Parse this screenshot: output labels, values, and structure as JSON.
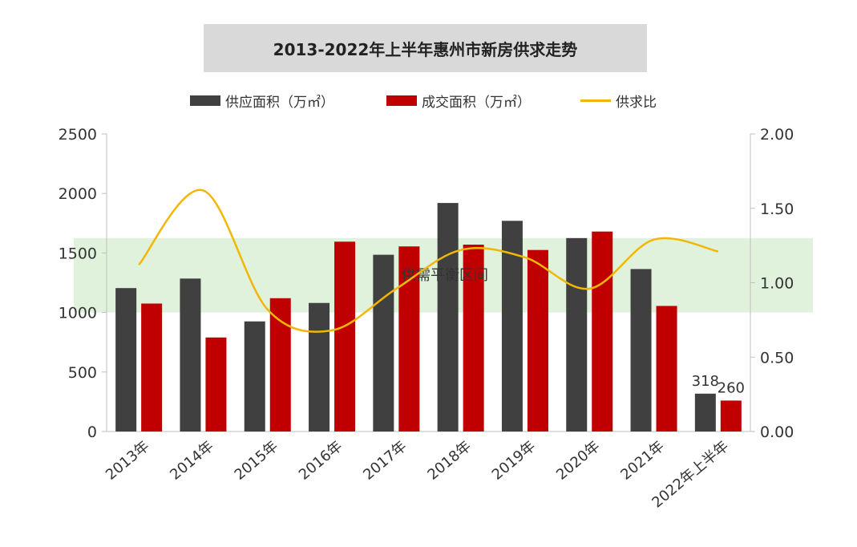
{
  "chart_data": {
    "type": "bar",
    "title": "2013-2022年上半年惠州市新房供求走势",
    "categories": [
      "2013年",
      "2014年",
      "2015年",
      "2016年",
      "2017年",
      "2018年",
      "2019年",
      "2020年",
      "2021年",
      "2022年上半年"
    ],
    "series": [
      {
        "name": "供应面积（万㎡）",
        "type": "bar",
        "axis": "left",
        "color": "#404040",
        "values": [
          1205,
          1285,
          925,
          1080,
          1485,
          1920,
          1770,
          1625,
          1365,
          318
        ]
      },
      {
        "name": "成交面积（万㎡）",
        "type": "bar",
        "axis": "left",
        "color": "#c00000",
        "values": [
          1075,
          790,
          1120,
          1595,
          1555,
          1570,
          1525,
          1680,
          1055,
          260
        ]
      },
      {
        "name": "供求比",
        "type": "line",
        "smooth": true,
        "axis": "right",
        "color": "#f2b705",
        "values": [
          1.12,
          1.62,
          0.82,
          0.68,
          0.96,
          1.22,
          1.17,
          0.96,
          1.29,
          1.21
        ]
      }
    ],
    "y_left": {
      "min": 0,
      "max": 2500,
      "ticks": [
        "0",
        "500",
        "1000",
        "1500",
        "2000",
        "2500"
      ]
    },
    "y_right": {
      "min": 0,
      "max": 2.0,
      "ticks": [
        "0.00",
        "0.50",
        "1.00",
        "1.50",
        "2.00"
      ]
    },
    "data_labels": [
      {
        "category": "2022年上半年",
        "series": "供应面积（万㎡）",
        "text": "318"
      },
      {
        "category": "2022年上半年",
        "series": "成交面积（万㎡）",
        "text": "260"
      }
    ],
    "band": {
      "label": "供需平衡区间",
      "right_axis_range": [
        0.8,
        1.3
      ],
      "color": "#c6e8bf"
    },
    "legend_position": "top-center",
    "grid": false
  }
}
